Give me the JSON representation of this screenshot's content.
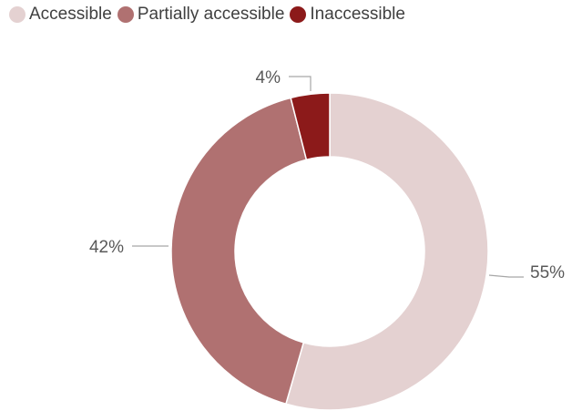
{
  "chart_data": {
    "type": "pie",
    "donut": true,
    "categories": [
      "Accessible",
      "Partially accessible",
      "Inaccessible"
    ],
    "values": [
      55,
      42,
      4
    ],
    "labels": [
      "55%",
      "42%",
      "4%"
    ],
    "colors": [
      "#e4d1d1",
      "#b07171",
      "#8c1a1a"
    ],
    "legend_position": "top-left",
    "title": ""
  }
}
